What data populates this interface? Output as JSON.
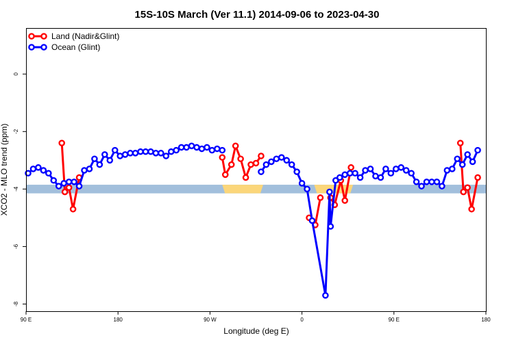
{
  "chart_data": {
    "type": "line",
    "title": "15S-10S March (Ver 11.1)   2014-09-06 to 2023-04-30",
    "xlabel": "Longitude (deg E)",
    "ylabel": "XCO2 - MLO trend (ppm)",
    "x_tick_labels": [
      "90 E",
      "180",
      "90 W",
      "0",
      "90 E",
      "180"
    ],
    "y_tick_labels": [
      "0",
      "-2",
      "-4",
      "-6",
      "-8"
    ],
    "y_ticks": [
      0,
      -2,
      -4,
      -6,
      -8
    ],
    "ylim": [
      -8.25,
      1.6
    ],
    "x_tick_longitudes": [
      90,
      180,
      270,
      360,
      450,
      540
    ],
    "xlim": [
      90,
      540
    ],
    "grid": false,
    "legend_position": "top-left",
    "band": {
      "y_low": -4.15,
      "y_high": -3.85,
      "ocean_color": "#a2bfdc",
      "land_color": "#fbd67a",
      "land_segments": [
        [
          282,
          322
        ],
        [
          372,
          410
        ]
      ]
    },
    "series": [
      {
        "name": "Land (Nadir&Glint)",
        "color": "#ff0000",
        "segments": [
          [
            [
              125,
              -2.4
            ],
            [
              128,
              -4.1
            ],
            [
              132,
              -3.95
            ],
            [
              136,
              -4.7
            ],
            [
              142,
              -3.6
            ]
          ],
          [
            [
              282,
              -2.9
            ],
            [
              285,
              -3.5
            ],
            [
              291,
              -3.15
            ],
            [
              295,
              -2.5
            ],
            [
              300,
              -2.95
            ],
            [
              305,
              -3.6
            ],
            [
              310,
              -3.15
            ],
            [
              315,
              -3.1
            ],
            [
              320,
              -2.85
            ]
          ],
          [
            [
              388,
              -4.3
            ],
            [
              392,
              -4.55
            ],
            [
              398,
              -3.7
            ],
            [
              402,
              -4.4
            ],
            [
              408,
              -3.25
            ]
          ],
          [
            [
              367,
              -5.0
            ],
            [
              373,
              -5.25
            ],
            [
              378,
              -4.3
            ]
          ],
          [
            [
              515,
              -2.4
            ],
            [
              518,
              -4.1
            ],
            [
              522,
              -3.95
            ],
            [
              526,
              -4.7
            ],
            [
              532,
              -3.6
            ]
          ]
        ]
      },
      {
        "name": "Ocean (Glint)",
        "color": "#0000ff",
        "segments": [
          [
            [
              92,
              -3.45
            ],
            [
              97,
              -3.3
            ],
            [
              102,
              -3.25
            ],
            [
              107,
              -3.35
            ],
            [
              112,
              -3.45
            ],
            [
              117,
              -3.7
            ],
            [
              122,
              -3.9
            ],
            [
              127,
              -3.8
            ],
            [
              132,
              -3.75
            ],
            [
              137,
              -3.75
            ],
            [
              142,
              -3.9
            ],
            [
              147,
              -3.35
            ],
            [
              152,
              -3.3
            ],
            [
              157,
              -2.95
            ],
            [
              162,
              -3.15
            ],
            [
              167,
              -2.8
            ],
            [
              172,
              -3.0
            ],
            [
              177,
              -2.65
            ],
            [
              182,
              -2.85
            ],
            [
              187,
              -2.8
            ],
            [
              192,
              -2.75
            ],
            [
              197,
              -2.75
            ],
            [
              202,
              -2.7
            ],
            [
              207,
              -2.7
            ],
            [
              212,
              -2.7
            ],
            [
              217,
              -2.75
            ],
            [
              222,
              -2.75
            ],
            [
              227,
              -2.85
            ],
            [
              232,
              -2.7
            ],
            [
              237,
              -2.65
            ],
            [
              242,
              -2.55
            ],
            [
              247,
              -2.55
            ],
            [
              252,
              -2.5
            ],
            [
              257,
              -2.55
            ],
            [
              262,
              -2.6
            ],
            [
              267,
              -2.55
            ],
            [
              272,
              -2.65
            ],
            [
              277,
              -2.6
            ],
            [
              282,
              -2.65
            ]
          ],
          [
            [
              320,
              -3.4
            ],
            [
              325,
              -3.15
            ],
            [
              330,
              -3.05
            ],
            [
              335,
              -2.95
            ],
            [
              340,
              -2.9
            ],
            [
              345,
              -3.0
            ],
            [
              350,
              -3.15
            ],
            [
              355,
              -3.4
            ],
            [
              360,
              -3.8
            ],
            [
              365,
              -4.0
            ],
            [
              370,
              -5.1
            ],
            [
              383,
              -7.7
            ],
            [
              387,
              -4.1
            ],
            [
              388,
              -5.3
            ],
            [
              393,
              -3.7
            ],
            [
              397,
              -3.6
            ],
            [
              402,
              -3.5
            ],
            [
              407,
              -3.45
            ],
            [
              412,
              -3.45
            ],
            [
              417,
              -3.6
            ],
            [
              422,
              -3.35
            ],
            [
              427,
              -3.3
            ],
            [
              432,
              -3.55
            ],
            [
              437,
              -3.6
            ],
            [
              442,
              -3.3
            ],
            [
              447,
              -3.45
            ],
            [
              452,
              -3.3
            ],
            [
              457,
              -3.25
            ],
            [
              462,
              -3.35
            ],
            [
              467,
              -3.45
            ],
            [
              472,
              -3.75
            ],
            [
              477,
              -3.9
            ],
            [
              482,
              -3.75
            ],
            [
              487,
              -3.75
            ],
            [
              492,
              -3.75
            ],
            [
              497,
              -3.9
            ],
            [
              502,
              -3.35
            ],
            [
              507,
              -3.3
            ],
            [
              512,
              -2.95
            ],
            [
              517,
              -3.15
            ],
            [
              522,
              -2.8
            ],
            [
              527,
              -3.05
            ],
            [
              532,
              -2.65
            ]
          ]
        ]
      }
    ]
  }
}
